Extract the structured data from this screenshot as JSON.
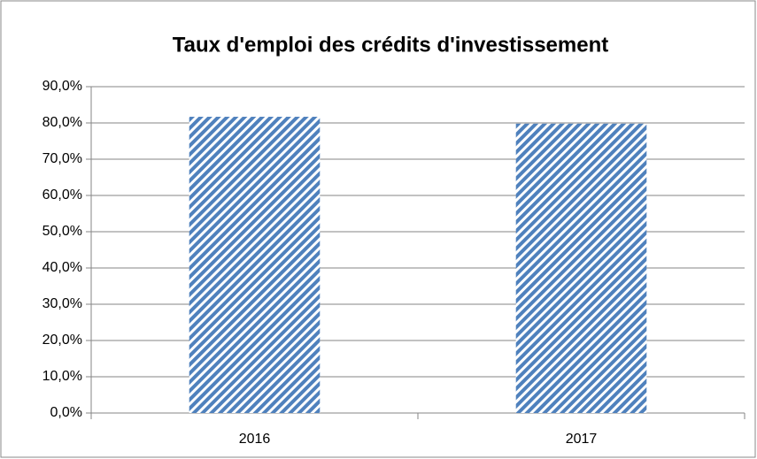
{
  "chart_data": {
    "type": "bar",
    "title": "Taux d'emploi des crédits d'investissement",
    "categories": [
      "2016",
      "2017"
    ],
    "values": [
      81.7,
      79.8
    ],
    "color": "#4f81bd",
    "ylim": [
      0,
      90
    ],
    "yticks": [
      {
        "value": 0,
        "label": "0,0%"
      },
      {
        "value": 10,
        "label": "10,0%"
      },
      {
        "value": 20,
        "label": "20,0%"
      },
      {
        "value": 30,
        "label": "30,0%"
      },
      {
        "value": 40,
        "label": "40,0%"
      },
      {
        "value": 50,
        "label": "50,0%"
      },
      {
        "value": 60,
        "label": "60,0%"
      },
      {
        "value": 70,
        "label": "70,0%"
      },
      {
        "value": 80,
        "label": "80,0%"
      },
      {
        "value": 90,
        "label": "90,0%"
      }
    ],
    "grid": true
  }
}
